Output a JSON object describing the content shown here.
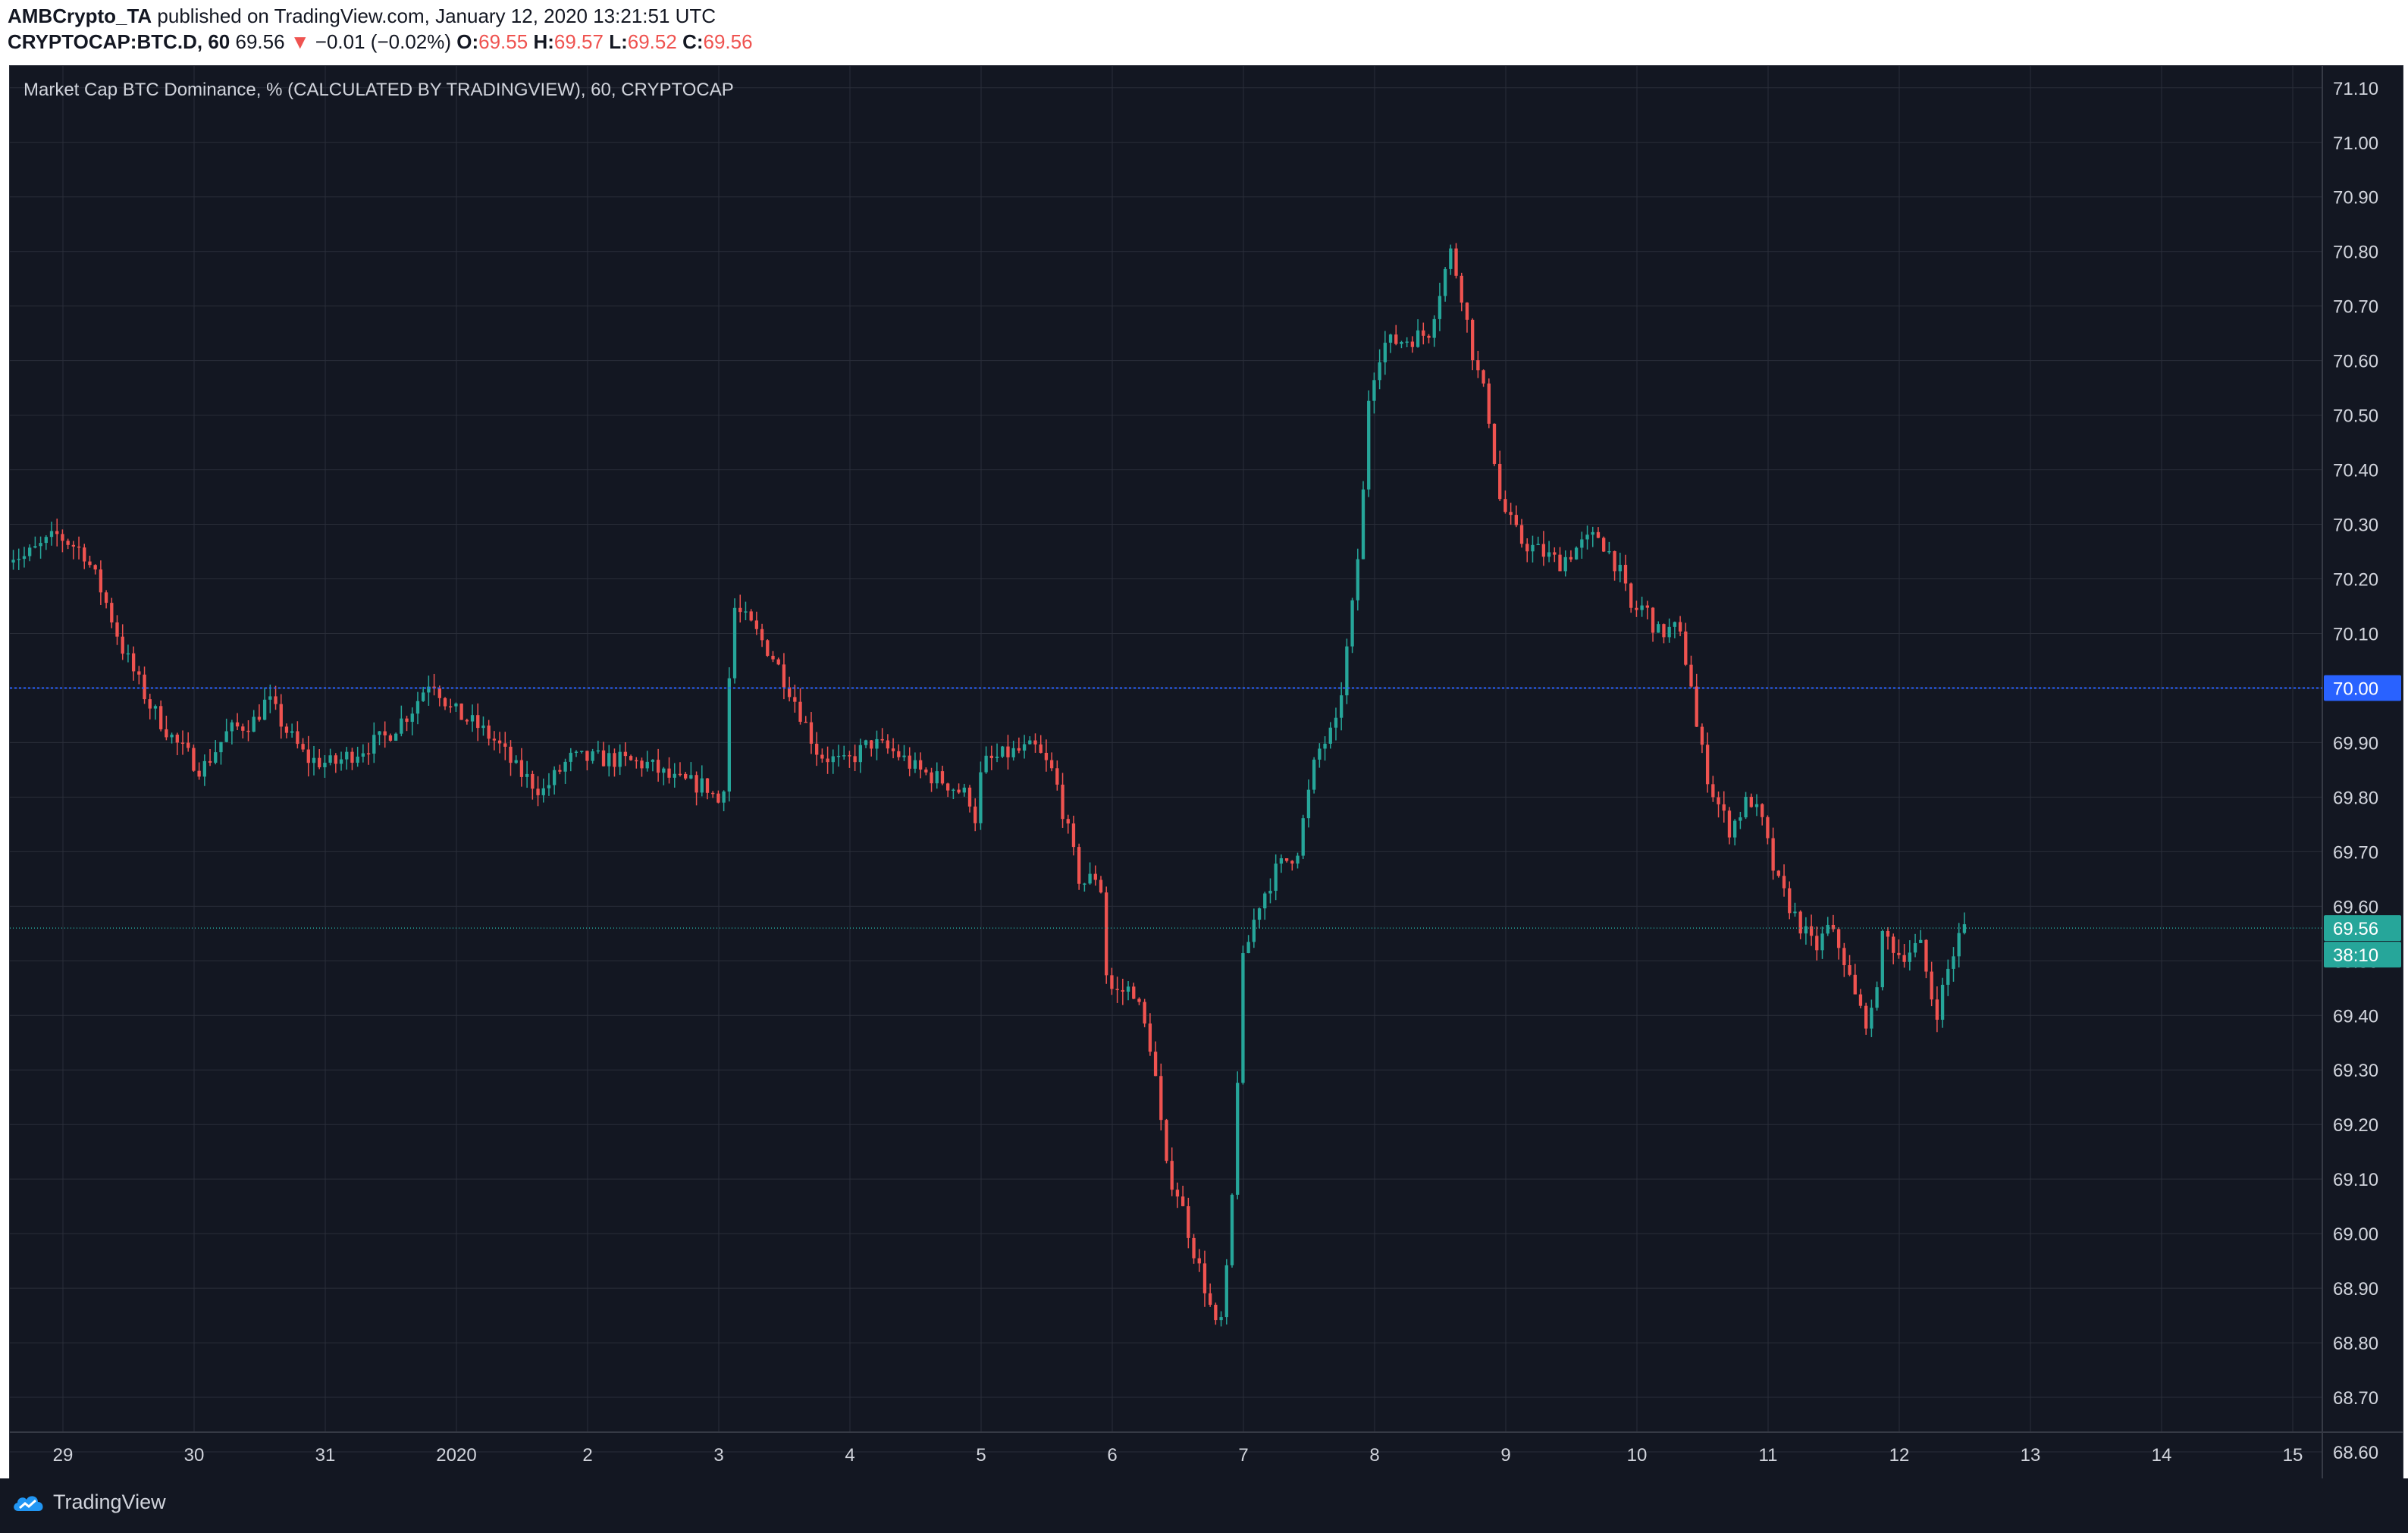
{
  "header": {
    "author": "AMBCrypto_TA",
    "published_text": "published on TradingView.com, January 12, 2020 13:21:51 UTC",
    "symbol": "CRYPTOCAP:BTC.D, 60",
    "last_price": "69.56",
    "change_arrow": "▼",
    "change_text": "−0.01 (−0.02%)",
    "o_label": "O:",
    "o_value": "69.55",
    "h_label": "H:",
    "h_value": "69.57",
    "l_label": "L:",
    "l_value": "69.52",
    "c_label": "C:",
    "c_value": "69.56"
  },
  "chart_title": "Market Cap BTC Dominance, % (CALCULATED BY TRADINGVIEW), 60, CRYPTOCAP",
  "footer": {
    "brand": "TradingView"
  },
  "colors": {
    "background": "#131722",
    "grid": "#2a2e39",
    "up": "#26a69a",
    "down": "#ef5350",
    "hline": "#2962ff",
    "axis_text": "#d1d4dc"
  },
  "chart_data": {
    "type": "candlestick",
    "title": "Market Cap BTC Dominance, % (CALCULATED BY TRADINGVIEW), 60, CRYPTOCAP",
    "ylim": [
      68.55,
      71.14
    ],
    "y_ticks": [
      "71.10",
      "71.00",
      "70.90",
      "70.80",
      "70.70",
      "70.60",
      "70.50",
      "70.40",
      "70.30",
      "70.20",
      "70.10",
      "70.00",
      "69.90",
      "69.80",
      "69.70",
      "69.60",
      "69.50",
      "69.40",
      "69.30",
      "69.20",
      "69.10",
      "69.00",
      "68.90",
      "68.80",
      "68.70",
      "68.60"
    ],
    "x_ticks": [
      "29",
      "30",
      "31",
      "2020",
      "2",
      "3",
      "4",
      "5",
      "6",
      "7",
      "8",
      "9",
      "10",
      "11",
      "12",
      "13",
      "14",
      "15"
    ],
    "x_range": [
      28.58,
      15.1
    ],
    "grid": true,
    "horizontal_line": {
      "value": 70.0,
      "label": "70.00"
    },
    "last_price": {
      "value": 69.56,
      "label": "69.56",
      "countdown": "38:10"
    },
    "price_path": [
      [
        28.58,
        70.25
      ],
      [
        28.75,
        70.24
      ],
      [
        29.0,
        70.28
      ],
      [
        29.2,
        70.25
      ],
      [
        29.35,
        70.17
      ],
      [
        29.5,
        70.07
      ],
      [
        29.7,
        69.97
      ],
      [
        29.9,
        69.9
      ],
      [
        30.1,
        69.85
      ],
      [
        30.3,
        69.92
      ],
      [
        30.5,
        69.94
      ],
      [
        30.6,
        69.98
      ],
      [
        30.75,
        69.92
      ],
      [
        30.9,
        69.87
      ],
      [
        31.1,
        69.86
      ],
      [
        31.25,
        69.88
      ],
      [
        31.5,
        69.91
      ],
      [
        31.7,
        69.96
      ],
      [
        31.85,
        70.02
      ],
      [
        32.0,
        69.96
      ],
      [
        32.2,
        69.93
      ],
      [
        32.35,
        69.9
      ],
      [
        32.5,
        69.85
      ],
      [
        32.7,
        69.81
      ],
      [
        32.9,
        69.87
      ],
      [
        33.2,
        69.87
      ],
      [
        33.5,
        69.86
      ],
      [
        33.7,
        69.83
      ],
      [
        33.95,
        69.82
      ],
      [
        34.07,
        69.78
      ],
      [
        34.15,
        70.15
      ],
      [
        34.3,
        70.11
      ],
      [
        34.45,
        70.06
      ],
      [
        34.6,
        69.99
      ],
      [
        34.8,
        69.88
      ],
      [
        35.0,
        69.86
      ],
      [
        35.2,
        69.9
      ],
      [
        35.4,
        69.88
      ],
      [
        35.55,
        69.85
      ],
      [
        35.75,
        69.83
      ],
      [
        35.95,
        69.8
      ],
      [
        36.0,
        69.76
      ],
      [
        36.05,
        69.86
      ],
      [
        36.25,
        69.88
      ],
      [
        36.45,
        69.89
      ],
      [
        36.6,
        69.84
      ],
      [
        36.7,
        69.74
      ],
      [
        36.8,
        69.64
      ],
      [
        36.95,
        69.66
      ],
      [
        36.98,
        69.49
      ],
      [
        37.05,
        69.44
      ],
      [
        37.2,
        69.45
      ],
      [
        37.35,
        69.33
      ],
      [
        37.45,
        69.12
      ],
      [
        37.55,
        69.07
      ],
      [
        37.65,
        68.98
      ],
      [
        37.75,
        68.9
      ],
      [
        37.85,
        68.81
      ],
      [
        37.9,
        68.88
      ],
      [
        37.98,
        69.15
      ],
      [
        38.02,
        69.48
      ],
      [
        38.15,
        69.6
      ],
      [
        38.3,
        69.67
      ],
      [
        38.45,
        69.7
      ],
      [
        38.6,
        69.88
      ],
      [
        38.75,
        69.93
      ],
      [
        38.82,
        70.05
      ],
      [
        38.9,
        70.2
      ],
      [
        38.97,
        70.4
      ],
      [
        39.0,
        70.55
      ],
      [
        39.1,
        70.63
      ],
      [
        39.3,
        70.64
      ],
      [
        39.45,
        70.65
      ],
      [
        39.55,
        70.74
      ],
      [
        39.62,
        70.8
      ],
      [
        39.7,
        70.73
      ],
      [
        39.8,
        70.6
      ],
      [
        39.9,
        70.52
      ],
      [
        40.0,
        70.34
      ],
      [
        40.15,
        70.27
      ],
      [
        40.3,
        70.25
      ],
      [
        40.45,
        70.23
      ],
      [
        40.6,
        70.26
      ],
      [
        40.75,
        70.28
      ],
      [
        40.9,
        70.22
      ],
      [
        41.0,
        70.14
      ],
      [
        41.1,
        70.15
      ],
      [
        41.2,
        70.1
      ],
      [
        41.35,
        70.11
      ],
      [
        41.45,
        70.02
      ],
      [
        41.5,
        69.92
      ],
      [
        41.6,
        69.82
      ],
      [
        41.75,
        69.74
      ],
      [
        41.9,
        69.8
      ],
      [
        42.0,
        69.75
      ],
      [
        42.1,
        69.65
      ],
      [
        42.25,
        69.58
      ],
      [
        42.4,
        69.52
      ],
      [
        42.5,
        69.56
      ],
      [
        42.6,
        69.52
      ],
      [
        42.72,
        69.42
      ],
      [
        42.82,
        69.38
      ],
      [
        42.92,
        69.55
      ],
      [
        43.05,
        69.51
      ],
      [
        43.2,
        69.53
      ],
      [
        43.32,
        69.4
      ],
      [
        43.42,
        69.49
      ],
      [
        43.52,
        69.56
      ]
    ]
  }
}
